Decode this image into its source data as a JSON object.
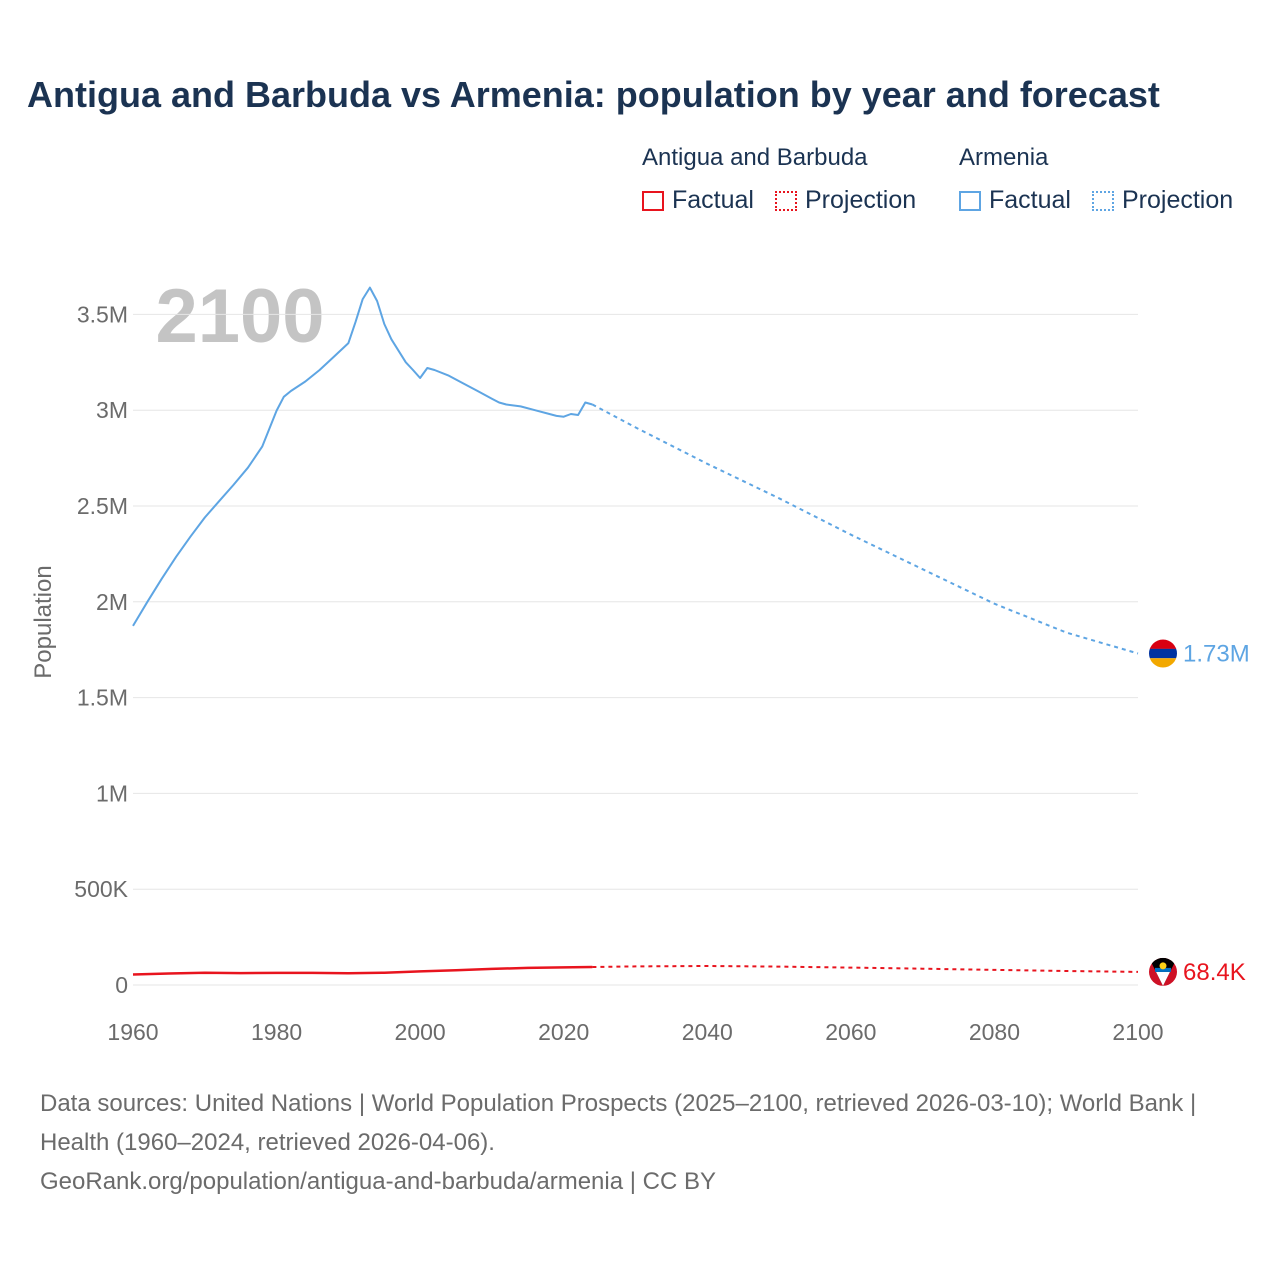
{
  "title": "Antigua and Barbuda vs Armenia: population by year and forecast",
  "legend": {
    "groups": [
      {
        "name": "Antigua and Barbuda",
        "color": "#e8141e",
        "factual_label": "Factual",
        "projection_label": "Projection"
      },
      {
        "name": "Armenia",
        "color": "#5ea5e3",
        "factual_label": "Factual",
        "projection_label": "Projection"
      }
    ]
  },
  "year_watermark": "2100",
  "footer": {
    "line1": "Data sources: United Nations | World Population Prospects (2025–2100, retrieved 2026-03-10); World Bank | Health (1960–2024, retrieved 2026-04-06).",
    "line2": "GeoRank.org/population/antigua-and-barbuda/armenia | CC BY"
  },
  "chart_data": {
    "type": "line",
    "ylabel": "Population",
    "xlabel": "",
    "xlim": [
      1960,
      2100
    ],
    "ylim": [
      0,
      3600000
    ],
    "x_ticks": [
      1960,
      1980,
      2000,
      2020,
      2040,
      2060,
      2080,
      2100
    ],
    "y_ticks": [
      {
        "value": 0,
        "label": "0"
      },
      {
        "value": 500000,
        "label": "500K"
      },
      {
        "value": 1000000,
        "label": "1M"
      },
      {
        "value": 1500000,
        "label": "1.5M"
      },
      {
        "value": 2000000,
        "label": "2M"
      },
      {
        "value": 2500000,
        "label": "2.5M"
      },
      {
        "value": 3000000,
        "label": "3M"
      },
      {
        "value": 3500000,
        "label": "3.5M"
      }
    ],
    "series": [
      {
        "name": "Armenia",
        "color": "#5ea5e3",
        "end_label": "1.73M",
        "factual": [
          [
            1960,
            1874000
          ],
          [
            1962,
            2000000
          ],
          [
            1964,
            2120000
          ],
          [
            1966,
            2235000
          ],
          [
            1968,
            2340000
          ],
          [
            1970,
            2440000
          ],
          [
            1972,
            2525000
          ],
          [
            1974,
            2610000
          ],
          [
            1976,
            2700000
          ],
          [
            1978,
            2810000
          ],
          [
            1980,
            2998000
          ],
          [
            1981,
            3070000
          ],
          [
            1982,
            3100000
          ],
          [
            1984,
            3150000
          ],
          [
            1986,
            3210000
          ],
          [
            1988,
            3280000
          ],
          [
            1990,
            3350000
          ],
          [
            1991,
            3460000
          ],
          [
            1992,
            3580000
          ],
          [
            1993,
            3640000
          ],
          [
            1994,
            3570000
          ],
          [
            1995,
            3450000
          ],
          [
            1996,
            3370000
          ],
          [
            1997,
            3310000
          ],
          [
            1998,
            3250000
          ],
          [
            1999,
            3210000
          ],
          [
            2000,
            3168000
          ],
          [
            2001,
            3220000
          ],
          [
            2002,
            3210000
          ],
          [
            2004,
            3180000
          ],
          [
            2006,
            3140000
          ],
          [
            2008,
            3100000
          ],
          [
            2010,
            3060000
          ],
          [
            2011,
            3040000
          ],
          [
            2012,
            3030000
          ],
          [
            2014,
            3020000
          ],
          [
            2016,
            3000000
          ],
          [
            2018,
            2980000
          ],
          [
            2019,
            2970000
          ],
          [
            2020,
            2966000
          ],
          [
            2021,
            2980000
          ],
          [
            2022,
            2975000
          ],
          [
            2023,
            3040000
          ],
          [
            2024,
            3030000
          ]
        ],
        "projection": [
          [
            2024,
            3030000
          ],
          [
            2030,
            2910000
          ],
          [
            2040,
            2720000
          ],
          [
            2050,
            2540000
          ],
          [
            2060,
            2350000
          ],
          [
            2070,
            2170000
          ],
          [
            2080,
            1990000
          ],
          [
            2090,
            1840000
          ],
          [
            2100,
            1730000
          ]
        ]
      },
      {
        "name": "Antigua and Barbuda",
        "color": "#e8141e",
        "end_label": "68.4K",
        "factual": [
          [
            1960,
            55000
          ],
          [
            1965,
            60000
          ],
          [
            1970,
            64000
          ],
          [
            1975,
            62000
          ],
          [
            1980,
            63000
          ],
          [
            1985,
            63000
          ],
          [
            1990,
            61000
          ],
          [
            1995,
            64000
          ],
          [
            2000,
            71000
          ],
          [
            2005,
            77000
          ],
          [
            2010,
            84000
          ],
          [
            2015,
            89000
          ],
          [
            2020,
            92000
          ],
          [
            2024,
            94000
          ]
        ],
        "projection": [
          [
            2024,
            94000
          ],
          [
            2030,
            97000
          ],
          [
            2040,
            99000
          ],
          [
            2050,
            96000
          ],
          [
            2060,
            91000
          ],
          [
            2070,
            85000
          ],
          [
            2080,
            79000
          ],
          [
            2090,
            73000
          ],
          [
            2100,
            68400
          ]
        ]
      }
    ]
  }
}
